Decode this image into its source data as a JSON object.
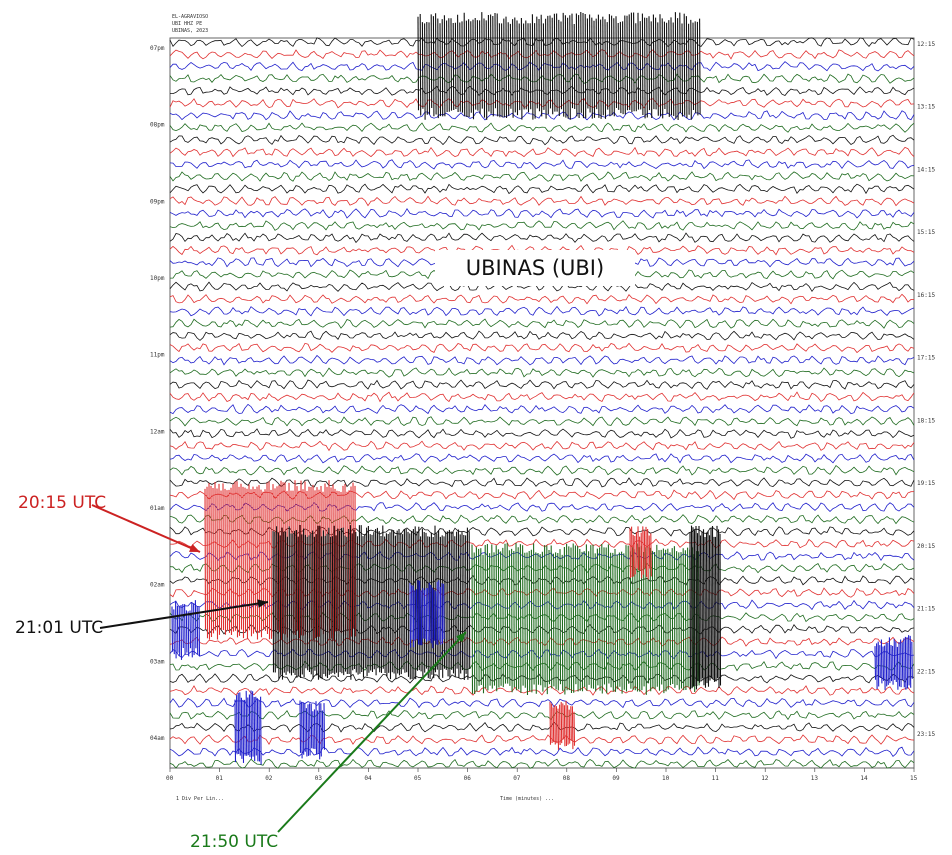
{
  "station_label": "UBINAS (UBI)",
  "header_lines": [
    "EL-AGRAVIOSO",
    "UBI HHZ PE",
    "UBINAS, 2023"
  ],
  "callouts": [
    {
      "text": "20:15 UTC",
      "color": "#cc2222"
    },
    {
      "text": "21:01 UTC",
      "color": "#111111"
    },
    {
      "text": "21:50 UTC",
      "color": "#1a7a1a"
    }
  ],
  "footer_left": "1 Div Per Lin...",
  "footer_center": "Time (minutes) ...",
  "chart_data": {
    "type": "line",
    "title": "UBINAS (UBI)",
    "xlabel": "",
    "ylabel": "",
    "x_ticks": [
      "00",
      "01",
      "02",
      "03",
      "04",
      "05",
      "06",
      "07",
      "08",
      "09",
      "10",
      "11",
      "12",
      "13",
      "14",
      "15"
    ],
    "y_left_ticks": [
      "07pm",
      "08pm",
      "09pm",
      "10pm",
      "11pm",
      "12am",
      "01am",
      "02am",
      "03am",
      "04am"
    ],
    "y_right_ticks": [
      "12:15",
      "13:15",
      "14:15",
      "15:15",
      "16:15",
      "17:15",
      "18:15",
      "19:15",
      "20:15",
      "21:15",
      "22:15",
      "23:15"
    ],
    "trace_colors": [
      "#111111",
      "#e03030",
      "#2020cc",
      "#1f6b1f"
    ],
    "series": [
      {
        "time_utc": "20:15 UTC",
        "color": "#e03030"
      },
      {
        "time_utc": "21:01 UTC",
        "color": "#111111"
      },
      {
        "time_utc": "21:50 UTC",
        "color": "#1f6b1f"
      }
    ],
    "grid": false
  }
}
